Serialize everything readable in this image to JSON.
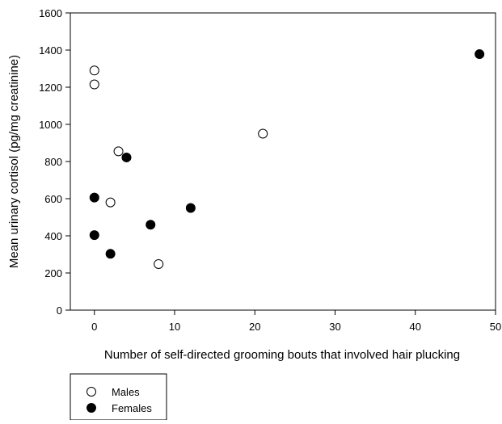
{
  "chart_data": {
    "type": "scatter",
    "title": "",
    "xlabel": "Number of self-directed grooming bouts that involved hair plucking",
    "ylabel": "Mean urinary cortisol (pg/mg creatinine)",
    "xlim": [
      -3,
      50
    ],
    "ylim": [
      0,
      1600
    ],
    "xticks": [
      0,
      10,
      20,
      30,
      40,
      50
    ],
    "yticks": [
      0,
      200,
      400,
      600,
      800,
      1000,
      1200,
      1400,
      1600
    ],
    "grid": false,
    "legend": "bottom-left, below plot",
    "series": [
      {
        "name": "Males",
        "marker": "open-circle",
        "points": [
          {
            "x": 0,
            "y": 1290
          },
          {
            "x": 0,
            "y": 1215
          },
          {
            "x": 3,
            "y": 855
          },
          {
            "x": 2,
            "y": 580
          },
          {
            "x": 8,
            "y": 248
          },
          {
            "x": 21,
            "y": 950
          }
        ]
      },
      {
        "name": "Females",
        "marker": "filled-circle",
        "points": [
          {
            "x": 48,
            "y": 1378
          },
          {
            "x": 4,
            "y": 822
          },
          {
            "x": 0,
            "y": 606
          },
          {
            "x": 0,
            "y": 404
          },
          {
            "x": 2,
            "y": 303
          },
          {
            "x": 7,
            "y": 460
          },
          {
            "x": 12,
            "y": 550
          }
        ]
      }
    ]
  }
}
